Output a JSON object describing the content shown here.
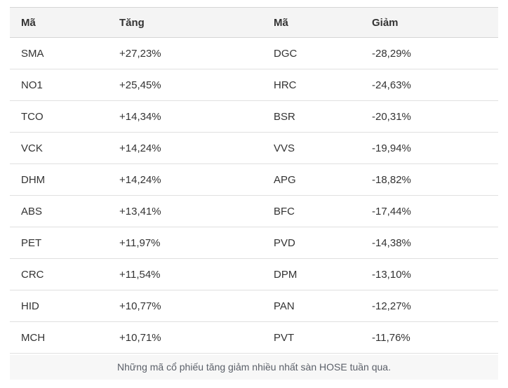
{
  "table": {
    "headers": [
      {
        "label": "Mã"
      },
      {
        "label": "Tăng"
      },
      {
        "label": "Mã"
      },
      {
        "label": "Giảm"
      }
    ],
    "gainers": [
      {
        "code": "SMA",
        "change": "+27,23%"
      },
      {
        "code": "NO1",
        "change": "+25,45%"
      },
      {
        "code": "TCO",
        "change": "+14,34%"
      },
      {
        "code": "VCK",
        "change": "+14,24%"
      },
      {
        "code": "DHM",
        "change": "+14,24%"
      },
      {
        "code": "ABS",
        "change": "+13,41%"
      },
      {
        "code": "PET",
        "change": "+11,97%"
      },
      {
        "code": "CRC",
        "change": "+11,54%"
      },
      {
        "code": "HID",
        "change": "+10,77%"
      },
      {
        "code": "MCH",
        "change": "+10,71%"
      }
    ],
    "losers": [
      {
        "code": "DGC",
        "change": "-28,29%"
      },
      {
        "code": "HRC",
        "change": "-24,63%"
      },
      {
        "code": "BSR",
        "change": "-20,31%"
      },
      {
        "code": "VVS",
        "change": "-19,94%"
      },
      {
        "code": "APG",
        "change": "-18,82%"
      },
      {
        "code": "BFC",
        "change": "-17,44%"
      },
      {
        "code": "PVD",
        "change": "-14,38%"
      },
      {
        "code": "DPM",
        "change": "-13,10%"
      },
      {
        "code": "PAN",
        "change": "-12,27%"
      },
      {
        "code": "PVT",
        "change": "-11,76%"
      }
    ],
    "caption": "Những mã cổ phiếu tăng giảm nhiều nhất sàn HOSE tuần qua."
  },
  "colors": {
    "header_bg": "#f4f4f4",
    "caption_bg": "#f7f7f7",
    "row_border": "#e0e0e0",
    "header_border": "#d5d5d5",
    "text": "#333333",
    "caption_text": "#5b6069",
    "page_bg": "#ffffff"
  },
  "chart_data": {
    "type": "table",
    "title": "Những mã cổ phiếu tăng giảm nhiều nhất sàn HOSE tuần qua.",
    "columns": [
      "Mã",
      "Tăng",
      "Mã",
      "Giảm"
    ],
    "rows": [
      [
        "SMA",
        "+27,23%",
        "DGC",
        "-28,29%"
      ],
      [
        "NO1",
        "+25,45%",
        "HRC",
        "-24,63%"
      ],
      [
        "TCO",
        "+14,34%",
        "BSR",
        "-20,31%"
      ],
      [
        "VCK",
        "+14,24%",
        "VVS",
        "-19,94%"
      ],
      [
        "DHM",
        "+14,24%",
        "APG",
        "-18,82%"
      ],
      [
        "ABS",
        "+13,41%",
        "BFC",
        "-17,44%"
      ],
      [
        "PET",
        "+11,97%",
        "PVD",
        "-14,38%"
      ],
      [
        "CRC",
        "+11,54%",
        "DPM",
        "-13,10%"
      ],
      [
        "HID",
        "+10,77%",
        "PAN",
        "-12,27%"
      ],
      [
        "MCH",
        "+10,71%",
        "PVT",
        "-11,76%"
      ]
    ],
    "layout": {
      "caption_position": "bottom",
      "gainers_side": "left",
      "losers_side": "right"
    }
  }
}
